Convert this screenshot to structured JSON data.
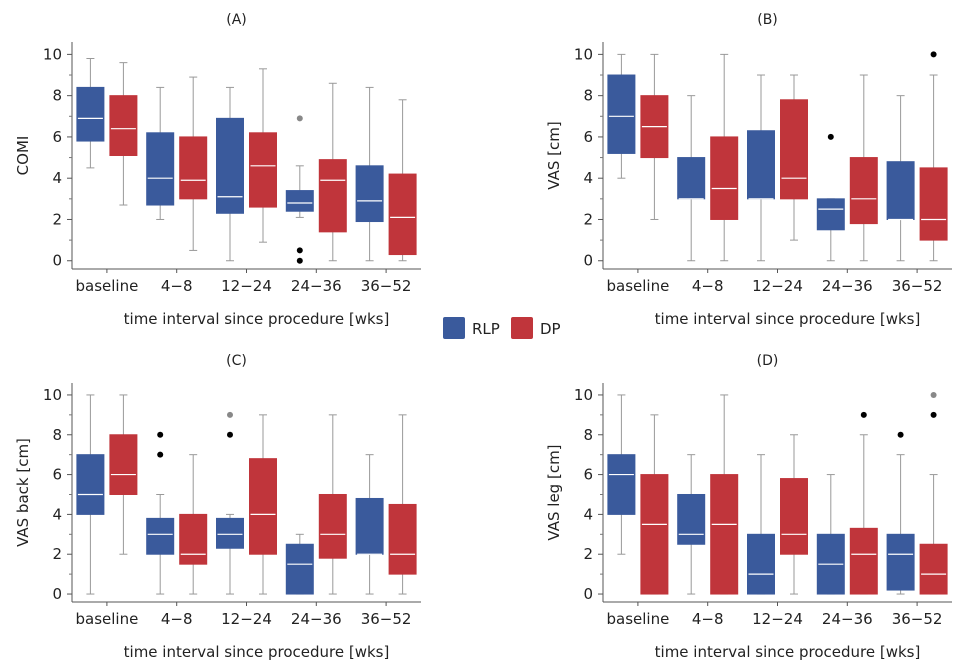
{
  "legend": {
    "entries": [
      {
        "name": "RLP",
        "color": "#3a5a9c"
      },
      {
        "name": "DP",
        "color": "#c0353b"
      }
    ]
  },
  "chart_data": [
    {
      "type": "box",
      "title": "(A)",
      "xlabel": "time interval since procedure [wks]",
      "ylabel": "COMI",
      "categories": [
        "baseline",
        "4−8",
        "12−24",
        "24−36",
        "36−52"
      ],
      "ylim": [
        -0.4,
        10.6
      ],
      "yticks": [
        0,
        2,
        4,
        6,
        8,
        10
      ],
      "series": [
        {
          "name": "RLP",
          "color": "#3a5a9c",
          "boxes": [
            {
              "min": 4.5,
              "q1": 5.8,
              "median": 6.9,
              "q3": 8.4,
              "max": 9.8,
              "outliers": []
            },
            {
              "min": 2.0,
              "q1": 2.7,
              "median": 4.0,
              "q3": 6.2,
              "max": 8.4,
              "outliers": []
            },
            {
              "min": 0.0,
              "q1": 2.3,
              "median": 3.1,
              "q3": 6.9,
              "max": 8.4,
              "outliers": []
            },
            {
              "min": 2.1,
              "q1": 2.4,
              "median": 2.8,
              "q3": 3.4,
              "max": 4.6,
              "outliers": [
                {
                  "y": 6.9,
                  "color": "#888888"
                },
                {
                  "y": 0.5,
                  "color": "#000000"
                },
                {
                  "y": 0.0,
                  "color": "#000000"
                }
              ]
            },
            {
              "min": 0.0,
              "q1": 1.9,
              "median": 2.9,
              "q3": 4.6,
              "max": 8.4,
              "outliers": []
            }
          ]
        },
        {
          "name": "DP",
          "color": "#c0353b",
          "boxes": [
            {
              "min": 2.7,
              "q1": 5.1,
              "median": 6.4,
              "q3": 8.0,
              "max": 9.6,
              "outliers": []
            },
            {
              "min": 0.5,
              "q1": 3.0,
              "median": 3.9,
              "q3": 6.0,
              "max": 8.9,
              "outliers": []
            },
            {
              "min": 0.9,
              "q1": 2.6,
              "median": 4.6,
              "q3": 6.2,
              "max": 9.3,
              "outliers": []
            },
            {
              "min": 0.0,
              "q1": 1.4,
              "median": 3.9,
              "q3": 4.9,
              "max": 8.6,
              "outliers": []
            },
            {
              "min": 0.0,
              "q1": 0.3,
              "median": 2.1,
              "q3": 4.2,
              "max": 7.8,
              "outliers": []
            }
          ]
        }
      ]
    },
    {
      "type": "box",
      "title": "(B)",
      "xlabel": "time interval since procedure [wks]",
      "ylabel": "VAS [cm]",
      "categories": [
        "baseline",
        "4−8",
        "12−24",
        "24−36",
        "36−52"
      ],
      "ylim": [
        -0.4,
        10.6
      ],
      "yticks": [
        0,
        2,
        4,
        6,
        8,
        10
      ],
      "series": [
        {
          "name": "RLP",
          "color": "#3a5a9c",
          "boxes": [
            {
              "min": 4.0,
              "q1": 5.2,
              "median": 7.0,
              "q3": 9.0,
              "max": 10.0,
              "outliers": []
            },
            {
              "min": 0.0,
              "q1": 3.0,
              "median": 3.0,
              "q3": 5.0,
              "max": 8.0,
              "outliers": []
            },
            {
              "min": 0.0,
              "q1": 3.0,
              "median": 3.0,
              "q3": 6.3,
              "max": 9.0,
              "outliers": []
            },
            {
              "min": 0.0,
              "q1": 1.5,
              "median": 2.5,
              "q3": 3.0,
              "max": 3.0,
              "outliers": [
                {
                  "y": 6.0,
                  "color": "#000000"
                }
              ]
            },
            {
              "min": 0.0,
              "q1": 2.0,
              "median": 2.0,
              "q3": 4.8,
              "max": 8.0,
              "outliers": []
            }
          ]
        },
        {
          "name": "DP",
          "color": "#c0353b",
          "boxes": [
            {
              "min": 2.0,
              "q1": 5.0,
              "median": 6.5,
              "q3": 8.0,
              "max": 10.0,
              "outliers": []
            },
            {
              "min": 0.0,
              "q1": 2.0,
              "median": 3.5,
              "q3": 6.0,
              "max": 10.0,
              "outliers": []
            },
            {
              "min": 1.0,
              "q1": 3.0,
              "median": 4.0,
              "q3": 7.8,
              "max": 9.0,
              "outliers": []
            },
            {
              "min": 0.0,
              "q1": 1.8,
              "median": 3.0,
              "q3": 5.0,
              "max": 9.0,
              "outliers": []
            },
            {
              "min": 0.0,
              "q1": 1.0,
              "median": 2.0,
              "q3": 4.5,
              "max": 9.0,
              "outliers": [
                {
                  "y": 10.0,
                  "color": "#000000"
                }
              ]
            }
          ]
        }
      ]
    },
    {
      "type": "box",
      "title": "(C)",
      "xlabel": "time interval since procedure [wks]",
      "ylabel": "VAS back [cm]",
      "categories": [
        "baseline",
        "4−8",
        "12−24",
        "24−36",
        "36−52"
      ],
      "ylim": [
        -0.4,
        10.6
      ],
      "yticks": [
        0,
        2,
        4,
        6,
        8,
        10
      ],
      "series": [
        {
          "name": "RLP",
          "color": "#3a5a9c",
          "boxes": [
            {
              "min": 0.0,
              "q1": 4.0,
              "median": 5.0,
              "q3": 7.0,
              "max": 10.0,
              "outliers": []
            },
            {
              "min": 0.0,
              "q1": 2.0,
              "median": 3.0,
              "q3": 3.8,
              "max": 5.0,
              "outliers": [
                {
                  "y": 8.0,
                  "color": "#000000"
                },
                {
                  "y": 7.0,
                  "color": "#000000"
                }
              ]
            },
            {
              "min": 0.0,
              "q1": 2.3,
              "median": 3.0,
              "q3": 3.8,
              "max": 4.0,
              "outliers": [
                {
                  "y": 9.0,
                  "color": "#888888"
                },
                {
                  "y": 8.0,
                  "color": "#000000"
                }
              ]
            },
            {
              "min": 0.0,
              "q1": 0.0,
              "median": 1.5,
              "q3": 2.5,
              "max": 3.0,
              "outliers": []
            },
            {
              "min": 0.0,
              "q1": 2.0,
              "median": 2.0,
              "q3": 4.8,
              "max": 7.0,
              "outliers": []
            }
          ]
        },
        {
          "name": "DP",
          "color": "#c0353b",
          "boxes": [
            {
              "min": 2.0,
              "q1": 5.0,
              "median": 6.0,
              "q3": 8.0,
              "max": 10.0,
              "outliers": []
            },
            {
              "min": 0.0,
              "q1": 1.5,
              "median": 2.0,
              "q3": 4.0,
              "max": 7.0,
              "outliers": []
            },
            {
              "min": 0.0,
              "q1": 2.0,
              "median": 4.0,
              "q3": 6.8,
              "max": 9.0,
              "outliers": []
            },
            {
              "min": 0.0,
              "q1": 1.8,
              "median": 3.0,
              "q3": 5.0,
              "max": 9.0,
              "outliers": []
            },
            {
              "min": 0.0,
              "q1": 1.0,
              "median": 2.0,
              "q3": 4.5,
              "max": 9.0,
              "outliers": []
            }
          ]
        }
      ]
    },
    {
      "type": "box",
      "title": "(D)",
      "xlabel": "time interval since procedure [wks]",
      "ylabel": "VAS leg [cm]",
      "categories": [
        "baseline",
        "4−8",
        "12−24",
        "24−36",
        "36−52"
      ],
      "ylim": [
        -0.4,
        10.6
      ],
      "yticks": [
        0,
        2,
        4,
        6,
        8,
        10
      ],
      "series": [
        {
          "name": "RLP",
          "color": "#3a5a9c",
          "boxes": [
            {
              "min": 2.0,
              "q1": 4.0,
              "median": 6.0,
              "q3": 7.0,
              "max": 10.0,
              "outliers": []
            },
            {
              "min": 0.0,
              "q1": 2.5,
              "median": 3.0,
              "q3": 5.0,
              "max": 7.0,
              "outliers": []
            },
            {
              "min": 0.0,
              "q1": 0.0,
              "median": 1.0,
              "q3": 3.0,
              "max": 7.0,
              "outliers": []
            },
            {
              "min": 0.0,
              "q1": 0.0,
              "median": 1.5,
              "q3": 3.0,
              "max": 6.0,
              "outliers": []
            },
            {
              "min": 0.0,
              "q1": 0.2,
              "median": 2.0,
              "q3": 3.0,
              "max": 7.0,
              "outliers": [
                {
                  "y": 8.0,
                  "color": "#000000"
                }
              ]
            }
          ]
        },
        {
          "name": "DP",
          "color": "#c0353b",
          "boxes": [
            {
              "min": 0.0,
              "q1": 0.0,
              "median": 3.5,
              "q3": 6.0,
              "max": 9.0,
              "outliers": []
            },
            {
              "min": 0.0,
              "q1": 0.0,
              "median": 3.5,
              "q3": 6.0,
              "max": 10.0,
              "outliers": []
            },
            {
              "min": 0.0,
              "q1": 2.0,
              "median": 3.0,
              "q3": 5.8,
              "max": 8.0,
              "outliers": []
            },
            {
              "min": 0.0,
              "q1": 0.0,
              "median": 2.0,
              "q3": 3.3,
              "max": 8.0,
              "outliers": [
                {
                  "y": 9.0,
                  "color": "#000000"
                }
              ]
            },
            {
              "min": 0.0,
              "q1": 0.0,
              "median": 1.0,
              "q3": 2.5,
              "max": 6.0,
              "outliers": [
                {
                  "y": 10.0,
                  "color": "#888888"
                },
                {
                  "y": 9.0,
                  "color": "#000000"
                }
              ]
            }
          ]
        }
      ]
    }
  ]
}
